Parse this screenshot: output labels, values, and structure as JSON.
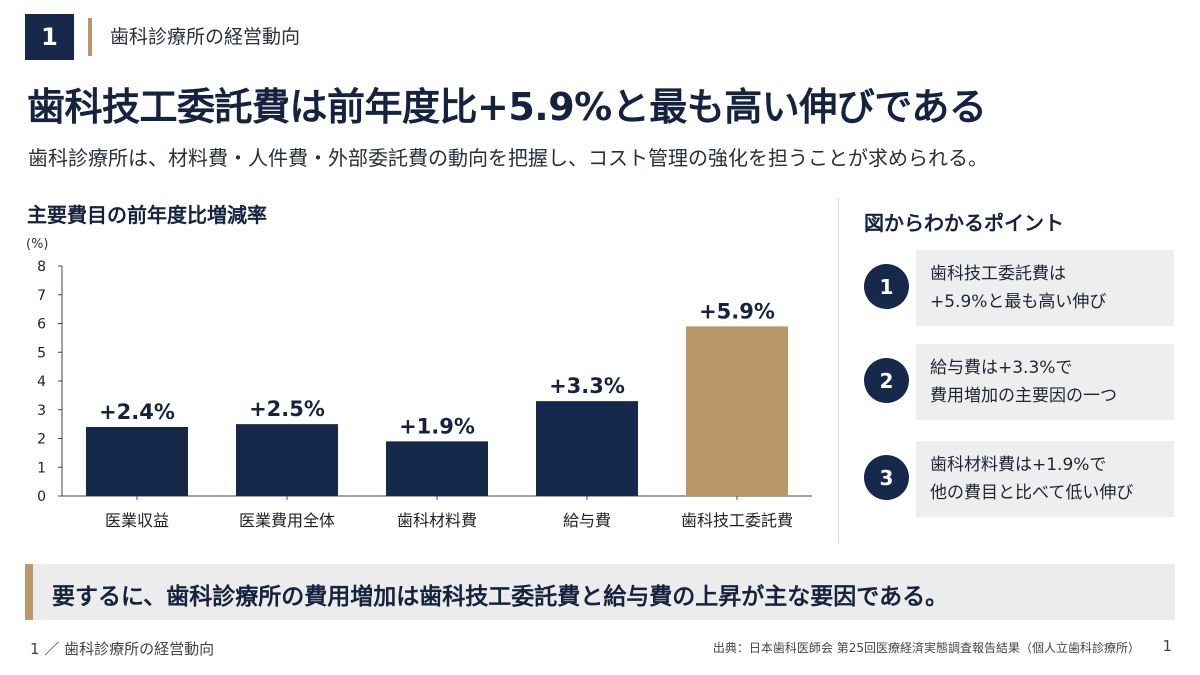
{
  "section": {
    "number": "1",
    "title": "歯科診療所の経営動向"
  },
  "headline": "歯科技工委託費は前年度比+5.9%と最も高い伸びである",
  "subline": "歯科診療所は、材料費・人件費・外部委託費の動向を把握し、コスト管理の強化を担うことが求められる。",
  "chart_title": "主要費目の前年度比増減率",
  "chart_data": {
    "type": "bar",
    "title": "主要費目の前年度比増減率",
    "ylabel": "(%)",
    "xlabel": "",
    "categories": [
      "医業収益",
      "医業費用全体",
      "歯科材料費",
      "給与費",
      "歯科技工委託費"
    ],
    "values": [
      2.4,
      2.5,
      1.9,
      3.3,
      5.9
    ],
    "data_labels": [
      "+2.4%",
      "+2.5%",
      "+1.9%",
      "+3.3%",
      "+5.9%"
    ],
    "ylim": [
      0,
      8
    ],
    "yticks": [
      "0",
      "1",
      "2",
      "3",
      "4",
      "5",
      "6",
      "7",
      "8"
    ],
    "grid": false,
    "colors": [
      "#17294a",
      "#17294a",
      "#17294a",
      "#17294a",
      "#b8976a"
    ]
  },
  "points": {
    "title": "図からわかるポイント",
    "items": [
      {
        "num": "1",
        "line1": "歯科技工委託費は",
        "line2": "+5.9%と最も高い伸び"
      },
      {
        "num": "2",
        "line1": "給与費は+3.3%で",
        "line2": "費用増加の主要因の一つ"
      },
      {
        "num": "3",
        "line1": "歯科材料費は+1.9%で",
        "line2": "他の費目と比べて低い伸び"
      }
    ]
  },
  "summary": "要するに、歯科診療所の費用増加は歯科技工委託費と給与費の上昇が主な要因である。",
  "footer": {
    "left": "1 ／ 歯科診療所の経営動向",
    "source": "出典：日本歯科医師会 第25回医療経済実態調査報告結果（個人立歯科診療所）",
    "page": "1"
  },
  "colors": {
    "navy": "#17294a",
    "gold": "#b8976a"
  }
}
